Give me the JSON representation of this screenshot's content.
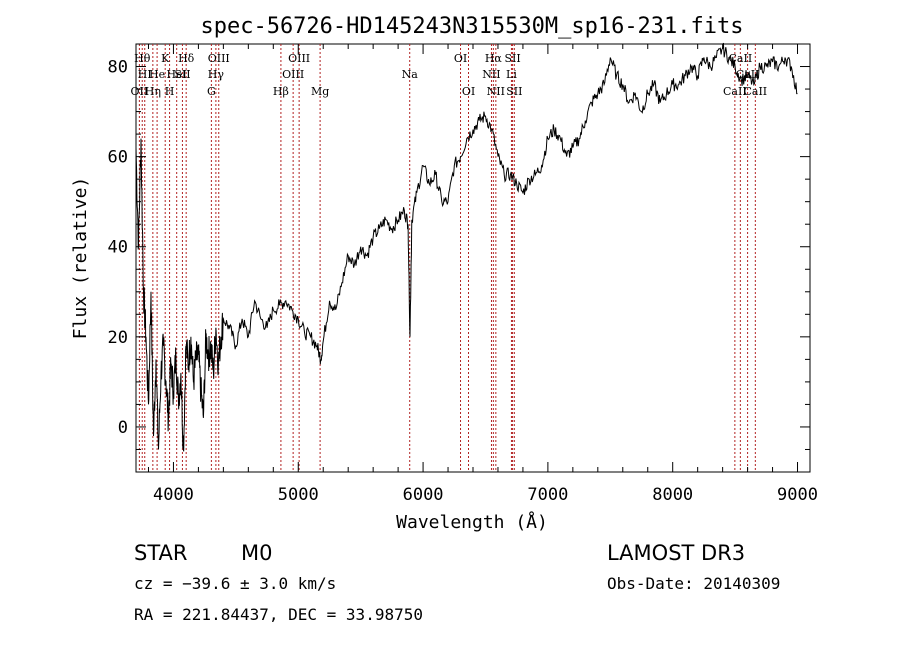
{
  "chart_data": {
    "type": "line",
    "title": "spec-56726-HD145243N315530M_sp16-231.fits",
    "xlabel": "Wavelength (Å)",
    "ylabel": "Flux (relative)",
    "xlim": [
      3700,
      9100
    ],
    "ylim": [
      -10,
      85
    ],
    "x_ticks": [
      4000,
      5000,
      6000,
      7000,
      8000,
      9000
    ],
    "x_tick_labels": [
      "4000",
      "5000",
      "6000",
      "7000",
      "8000",
      "9000"
    ],
    "y_ticks": [
      0,
      20,
      40,
      60,
      80
    ],
    "y_tick_labels": [
      "0",
      "20",
      "40",
      "60",
      "80"
    ],
    "line_color": "#000000",
    "marker_color": "#b22222",
    "series": [
      {
        "x": [
          3700,
          3720,
          3740,
          3760,
          3780,
          3800,
          3820,
          3840,
          3860,
          3880,
          3900,
          3920,
          3940,
          3960,
          3980,
          4000,
          4020,
          4040,
          4060,
          4080,
          4100,
          4120,
          4140,
          4160,
          4180,
          4200,
          4220,
          4240,
          4260,
          4280,
          4300,
          4320,
          4340,
          4360,
          4380,
          4400,
          4450,
          4500,
          4550,
          4600,
          4650,
          4700,
          4750,
          4800,
          4850,
          4900,
          4950,
          5000,
          5050,
          5100,
          5150,
          5180,
          5200,
          5250,
          5300,
          5350,
          5400,
          5450,
          5500,
          5550,
          5600,
          5650,
          5700,
          5750,
          5800,
          5850,
          5880,
          5895,
          5910,
          5950,
          6000,
          6050,
          6100,
          6150,
          6200,
          6250,
          6300,
          6350,
          6400,
          6450,
          6500,
          6550,
          6600,
          6650,
          6700,
          6750,
          6800,
          6850,
          6900,
          6950,
          7000,
          7050,
          7100,
          7150,
          7200,
          7250,
          7300,
          7350,
          7400,
          7450,
          7500,
          7550,
          7600,
          7650,
          7700,
          7750,
          7800,
          7850,
          7900,
          7950,
          8000,
          8050,
          8100,
          8150,
          8200,
          8250,
          8300,
          8350,
          8400,
          8450,
          8500,
          8550,
          8600,
          8650,
          8700,
          8750,
          8800,
          8850,
          8900,
          8950,
          9000
        ],
        "y": [
          62,
          40,
          64,
          30,
          20,
          5,
          30,
          -2,
          15,
          -5,
          12,
          18,
          10,
          2,
          14,
          8,
          16,
          6,
          12,
          -5,
          18,
          14,
          20,
          10,
          15,
          16,
          8,
          2,
          20,
          16,
          18,
          12,
          22,
          14,
          20,
          24,
          22,
          18,
          24,
          20,
          28,
          24,
          22,
          26,
          27,
          28,
          26,
          24,
          21,
          20,
          18,
          15,
          19,
          28,
          26,
          32,
          38,
          36,
          40,
          38,
          42,
          44,
          46,
          44,
          46,
          48,
          45,
          20,
          46,
          52,
          58,
          54,
          56,
          50,
          50,
          58,
          60,
          64,
          66,
          68,
          69,
          66,
          60,
          56,
          56,
          54,
          52,
          55,
          56,
          58,
          64,
          66,
          64,
          60,
          62,
          64,
          68,
          72,
          74,
          76,
          82,
          78,
          76,
          72,
          74,
          70,
          74,
          76,
          72,
          74,
          76,
          76,
          78,
          80,
          78,
          82,
          80,
          82,
          84,
          82,
          80,
          77,
          78,
          76,
          80,
          80,
          81,
          80,
          82,
          80,
          74
        ]
      }
    ],
    "lines": [
      {
        "wl": 3727,
        "label": "OII",
        "row": 3
      },
      {
        "wl": 3750,
        "label": "Hθ",
        "row": 1
      },
      {
        "wl": 3770,
        "label": "HI",
        "row": 2
      },
      {
        "wl": 3835,
        "label": "Hη",
        "row": 3
      },
      {
        "wl": 3869,
        "label": "He",
        "row": 2
      },
      {
        "wl": 3934,
        "label": "K",
        "row": 1
      },
      {
        "wl": 3969,
        "label": "H",
        "row": 3
      },
      {
        "wl": 4026,
        "label": "HeI",
        "row": 2
      },
      {
        "wl": 4072,
        "label": "SII",
        "row": 2
      },
      {
        "wl": 4102,
        "label": "Hδ",
        "row": 1
      },
      {
        "wl": 4304,
        "label": "G",
        "row": 3
      },
      {
        "wl": 4340,
        "label": "Hγ",
        "row": 2
      },
      {
        "wl": 4363,
        "label": "OIII",
        "row": 1
      },
      {
        "wl": 4861,
        "label": "Hβ",
        "row": 3
      },
      {
        "wl": 4959,
        "label": "OIII",
        "row": 2
      },
      {
        "wl": 5007,
        "label": "OIII",
        "row": 1
      },
      {
        "wl": 5175,
        "label": "Mg",
        "row": 3
      },
      {
        "wl": 5893,
        "label": "Na",
        "row": 2
      },
      {
        "wl": 6300,
        "label": "OI",
        "row": 1
      },
      {
        "wl": 6364,
        "label": "OI",
        "row": 3
      },
      {
        "wl": 6548,
        "label": "NII",
        "row": 2
      },
      {
        "wl": 6563,
        "label": "Hα",
        "row": 1
      },
      {
        "wl": 6583,
        "label": "NII",
        "row": 3
      },
      {
        "wl": 6708,
        "label": "Li",
        "row": 2
      },
      {
        "wl": 6717,
        "label": "SII",
        "row": 1
      },
      {
        "wl": 6731,
        "label": "SII",
        "row": 3
      },
      {
        "wl": 8498,
        "label": "CaII",
        "row": 3
      },
      {
        "wl": 8542,
        "label": "CaII",
        "row": 1
      },
      {
        "wl": 8662,
        "label": "CaII",
        "row": 3
      },
      {
        "wl": 8600,
        "label": "CaII",
        "row": 2
      }
    ]
  },
  "info": {
    "class": "STAR",
    "subclass": "M0",
    "survey": "LAMOST DR3",
    "cz": "cz = −39.6 ± 3.0 km/s",
    "obs_date": "Obs-Date: 20140309",
    "radec": "RA = 221.84437, DEC =  33.98750"
  }
}
